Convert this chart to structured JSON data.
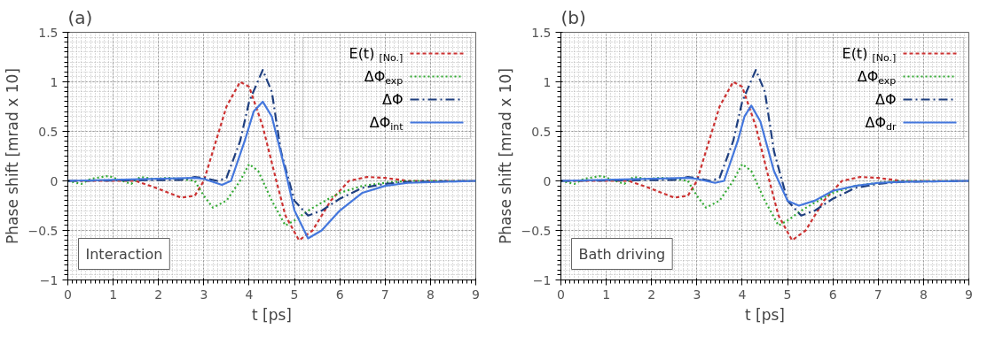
{
  "chart_data": [
    {
      "type": "line",
      "title": "(a)",
      "xlabel": "t [ps]",
      "ylabel": "Phase shift [mrad x 10]",
      "xlim": [
        0,
        9
      ],
      "ylim": [
        -1,
        1.5
      ],
      "xticks": [
        0,
        1,
        2,
        3,
        4,
        5,
        6,
        7,
        8,
        9
      ],
      "yticks": [
        -1,
        -0.5,
        0,
        0.5,
        1,
        1.5
      ],
      "grid": true,
      "legend": "top right",
      "annotations": [
        "Interaction"
      ],
      "series": [
        {
          "name": "E(t) $_{[No.]}$",
          "color": "#cc3333",
          "line_style": "dashed",
          "x": [
            0,
            1.5,
            2,
            2.5,
            2.8,
            3,
            3.2,
            3.5,
            3.8,
            4,
            4.3,
            4.6,
            4.8,
            5.1,
            5.4,
            5.8,
            6.2,
            6.6,
            7,
            7.5,
            9
          ],
          "values": [
            0,
            0,
            -0.08,
            -0.17,
            -0.15,
            0,
            0.3,
            0.75,
            1,
            0.95,
            0.55,
            0,
            -0.35,
            -0.6,
            -0.5,
            -0.2,
            0,
            0.04,
            0.03,
            0,
            0
          ]
        },
        {
          "name": "ΔΦ$_{exp}$",
          "color": "#33aa33",
          "line_style": "dotted",
          "x": [
            0,
            0.3,
            0.5,
            0.9,
            1.2,
            1.4,
            1.6,
            1.9,
            2.2,
            2.5,
            2.8,
            3,
            3.2,
            3.5,
            3.8,
            4,
            4.2,
            4.5,
            4.8,
            5,
            5.3,
            5.6,
            6,
            6.5,
            7,
            7.5,
            9
          ],
          "values": [
            0,
            -0.03,
            0.02,
            0.05,
            0,
            -0.03,
            0.04,
            0.02,
            0.03,
            0.02,
            0,
            -0.15,
            -0.27,
            -0.2,
            0,
            0.17,
            0.1,
            -0.2,
            -0.45,
            -0.4,
            -0.3,
            -0.22,
            -0.12,
            -0.05,
            -0.02,
            0,
            0
          ]
        },
        {
          "name": "ΔΦ",
          "color": "#1f3f7f",
          "line_style": "dashdot",
          "x": [
            0,
            2.5,
            2.8,
            3,
            3.3,
            3.5,
            3.8,
            4,
            4.3,
            4.5,
            4.7,
            5,
            5.3,
            5.6,
            6,
            6.5,
            7,
            7.5,
            9
          ],
          "values": [
            0,
            0.01,
            0.04,
            0.03,
            0,
            0.03,
            0.4,
            0.8,
            1.12,
            0.9,
            0.3,
            -0.2,
            -0.35,
            -0.3,
            -0.18,
            -0.07,
            -0.03,
            -0.01,
            0
          ]
        },
        {
          "name": "ΔΦ$_{int}$",
          "color": "#4477dd",
          "line_style": "solid",
          "x": [
            0,
            2.8,
            3,
            3.4,
            3.6,
            3.9,
            4.1,
            4.3,
            4.5,
            4.8,
            5,
            5.3,
            5.6,
            6,
            6.5,
            7,
            7.5,
            9
          ],
          "values": [
            0,
            0.03,
            0.02,
            -0.04,
            0,
            0.4,
            0.7,
            0.8,
            0.65,
            0.1,
            -0.3,
            -0.58,
            -0.5,
            -0.3,
            -0.12,
            -0.05,
            -0.02,
            0
          ]
        }
      ]
    },
    {
      "type": "line",
      "title": "(b)",
      "xlabel": "t [ps]",
      "ylabel": "Phase shift [mrad x 10]",
      "xlim": [
        0,
        9
      ],
      "ylim": [
        -1,
        1.5
      ],
      "xticks": [
        0,
        1,
        2,
        3,
        4,
        5,
        6,
        7,
        8,
        9
      ],
      "yticks": [
        -1,
        -0.5,
        0,
        0.5,
        1,
        1.5
      ],
      "grid": true,
      "legend": "top right",
      "annotations": [
        "Bath driving"
      ],
      "series": [
        {
          "name": "E(t) $_{[No.]}$",
          "color": "#cc3333",
          "line_style": "dashed",
          "x": [
            0,
            1.5,
            2,
            2.5,
            2.8,
            3,
            3.2,
            3.5,
            3.8,
            4,
            4.3,
            4.6,
            4.8,
            5.1,
            5.4,
            5.8,
            6.2,
            6.6,
            7,
            7.5,
            9
          ],
          "values": [
            0,
            0,
            -0.08,
            -0.17,
            -0.15,
            0,
            0.3,
            0.75,
            1,
            0.95,
            0.55,
            0,
            -0.35,
            -0.6,
            -0.5,
            -0.2,
            0,
            0.04,
            0.03,
            0,
            0
          ]
        },
        {
          "name": "ΔΦ$_{exp}$",
          "color": "#33aa33",
          "line_style": "dotted",
          "x": [
            0,
            0.3,
            0.5,
            0.9,
            1.2,
            1.4,
            1.6,
            1.9,
            2.2,
            2.5,
            2.8,
            3,
            3.2,
            3.5,
            3.8,
            4,
            4.2,
            4.5,
            4.8,
            5,
            5.3,
            5.6,
            6,
            6.5,
            7,
            7.5,
            9
          ],
          "values": [
            0,
            -0.03,
            0.02,
            0.05,
            0,
            -0.03,
            0.04,
            0.02,
            0.03,
            0.02,
            0,
            -0.15,
            -0.27,
            -0.2,
            0,
            0.17,
            0.1,
            -0.2,
            -0.45,
            -0.4,
            -0.3,
            -0.22,
            -0.12,
            -0.05,
            -0.02,
            0,
            0
          ]
        },
        {
          "name": "ΔΦ",
          "color": "#1f3f7f",
          "line_style": "dashdot",
          "x": [
            0,
            2.5,
            2.8,
            3,
            3.3,
            3.5,
            3.8,
            4,
            4.3,
            4.5,
            4.7,
            5,
            5.3,
            5.6,
            6,
            6.5,
            7,
            7.5,
            9
          ],
          "values": [
            0,
            0.01,
            0.04,
            0.03,
            0,
            0.03,
            0.4,
            0.8,
            1.12,
            0.9,
            0.3,
            -0.2,
            -0.35,
            -0.3,
            -0.18,
            -0.07,
            -0.03,
            -0.01,
            0
          ]
        },
        {
          "name": "ΔΦ$_{dr}$",
          "color": "#4477dd",
          "line_style": "solid",
          "x": [
            0,
            2.8,
            3,
            3.4,
            3.6,
            3.9,
            4.05,
            4.2,
            4.4,
            4.7,
            5,
            5.25,
            5.6,
            6,
            6.5,
            7,
            7.5,
            9
          ],
          "values": [
            0,
            0.03,
            0.02,
            -0.02,
            0,
            0.4,
            0.65,
            0.76,
            0.6,
            0.1,
            -0.2,
            -0.25,
            -0.2,
            -0.1,
            -0.05,
            -0.02,
            -0.01,
            0
          ]
        }
      ]
    }
  ]
}
